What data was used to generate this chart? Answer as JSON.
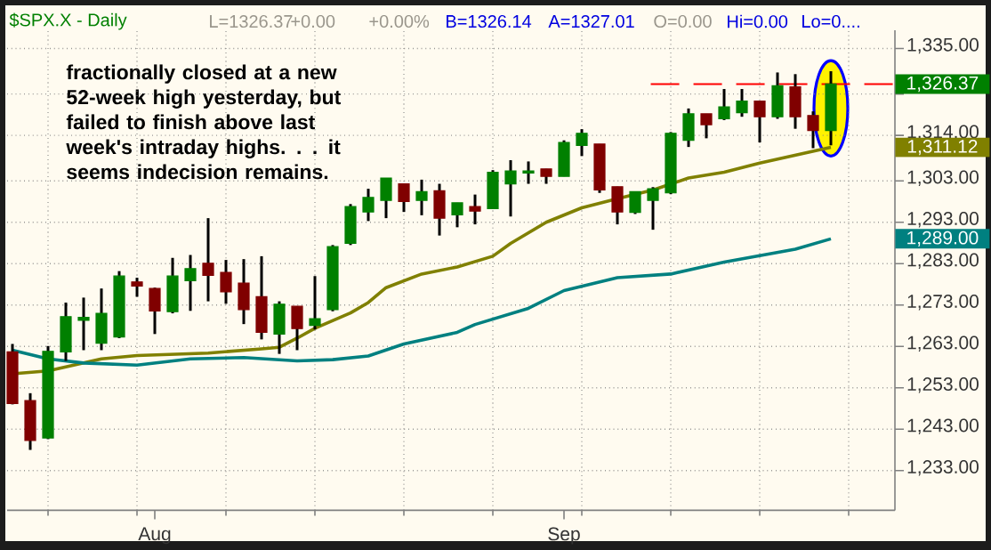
{
  "chart_data": {
    "type": "candlestick",
    "title": "$SPX.X - Daily",
    "categories": [
      null,
      null,
      null,
      null,
      null,
      null,
      null,
      null,
      "Aug",
      null,
      null,
      null,
      null,
      null,
      null,
      null,
      null,
      null,
      null,
      null,
      null,
      null,
      null,
      null,
      null,
      null,
      null,
      null,
      null,
      null,
      null,
      "Sep",
      null,
      null,
      null,
      null,
      null,
      null,
      null,
      null,
      null,
      null,
      null,
      null,
      null,
      null,
      null
    ],
    "ohlc": [
      [
        1261.7,
        1263.6,
        1249.0,
        1249.2
      ],
      [
        1249.9,
        1251.7,
        1238.0,
        1240.3
      ],
      [
        1240.9,
        1263.1,
        1240.6,
        1261.8
      ],
      [
        1261.7,
        1273.6,
        1259.5,
        1270.2
      ],
      [
        1269.3,
        1274.8,
        1262.1,
        1270.0
      ],
      [
        1263.8,
        1277.0,
        1262.1,
        1271.0
      ],
      [
        1265.3,
        1281.2,
        1265.0,
        1280.0
      ],
      [
        1278.6,
        1279.6,
        1275.0,
        1277.6
      ],
      [
        1277.0,
        1277.2,
        1266.0,
        1271.6
      ],
      [
        1271.4,
        1284.4,
        1271.0,
        1280.0
      ],
      [
        1278.9,
        1285.1,
        1271.6,
        1281.8
      ],
      [
        1283.1,
        1294.0,
        1273.9,
        1280.2
      ],
      [
        1280.9,
        1283.9,
        1273.3,
        1276.2
      ],
      [
        1278.3,
        1284.1,
        1268.4,
        1271.9
      ],
      [
        1275.0,
        1284.8,
        1264.7,
        1266.4
      ],
      [
        1266.0,
        1273.9,
        1261.2,
        1273.2
      ],
      [
        1272.7,
        1272.7,
        1262.1,
        1267.3
      ],
      [
        1268.1,
        1280.0,
        1267.1,
        1269.7
      ],
      [
        1271.9,
        1287.5,
        1271.5,
        1287.1
      ],
      [
        1287.9,
        1297.4,
        1287.5,
        1296.8
      ],
      [
        1295.5,
        1301.1,
        1293.3,
        1299.0
      ],
      [
        1298.3,
        1303.7,
        1294.0,
        1303.7
      ],
      [
        1302.3,
        1302.3,
        1295.5,
        1298.0
      ],
      [
        1298.3,
        1303.3,
        1294.7,
        1300.4
      ],
      [
        1300.6,
        1302.3,
        1289.8,
        1294.0
      ],
      [
        1294.8,
        1297.7,
        1291.8,
        1297.7
      ],
      [
        1296.8,
        1299.7,
        1292.5,
        1295.7
      ],
      [
        1296.3,
        1305.6,
        1296.3,
        1305.1
      ],
      [
        1302.3,
        1308.0,
        1294.4,
        1305.4
      ],
      [
        1304.9,
        1307.7,
        1302.3,
        1305.4
      ],
      [
        1305.9,
        1305.9,
        1302.3,
        1304.1
      ],
      [
        1304.1,
        1312.8,
        1304.1,
        1312.3
      ],
      [
        1311.6,
        1315.5,
        1309.0,
        1314.5
      ],
      [
        1311.9,
        1311.9,
        1300.1,
        1300.8
      ],
      [
        1301.6,
        1301.6,
        1292.5,
        1295.5
      ],
      [
        1295.4,
        1300.4,
        1295.0,
        1300.4
      ],
      [
        1298.3,
        1301.5,
        1291.2,
        1301.1
      ],
      [
        1300.1,
        1314.8,
        1299.8,
        1314.5
      ],
      [
        1312.8,
        1320.5,
        1311.2,
        1319.2
      ],
      [
        1319.2,
        1319.2,
        1313.3,
        1316.6
      ],
      [
        1318.0,
        1325.2,
        1317.7,
        1320.9
      ],
      [
        1319.5,
        1325.2,
        1318.5,
        1322.3
      ],
      [
        1322.3,
        1322.3,
        1312.3,
        1318.5
      ],
      [
        1318.5,
        1329.2,
        1318.0,
        1326.0
      ],
      [
        1325.7,
        1328.8,
        1315.6,
        1318.5
      ],
      [
        1318.8,
        1319.8,
        1310.9,
        1315.2
      ],
      [
        1315.2,
        1329.5,
        1311.6,
        1326.4
      ]
    ],
    "colors": [
      "#800000",
      "#800000",
      "#008000",
      "#008000",
      "#008000",
      "#008000",
      "#008000",
      "#800000",
      "#800000",
      "#008000",
      "#008000",
      "#800000",
      "#800000",
      "#800000",
      "#800000",
      "#008000",
      "#800000",
      "#008000",
      "#008000",
      "#008000",
      "#008000",
      "#008000",
      "#800000",
      "#008000",
      "#800000",
      "#008000",
      "#800000",
      "#008000",
      "#008000",
      "#008000",
      "#800000",
      "#008000",
      "#008000",
      "#800000",
      "#800000",
      "#008000",
      "#008000",
      "#008000",
      "#008000",
      "#800000",
      "#008000",
      "#008000",
      "#800000",
      "#008000",
      "#800000",
      "#800000",
      "#008000"
    ],
    "series": [
      {
        "type": "line",
        "color": "#808000",
        "values": [
          1256.4,
          null,
          1257.1,
          null,
          null,
          1260.0,
          null,
          1260.8,
          null,
          null,
          null,
          1261.4,
          null,
          null,
          1262.4,
          1262.8,
          1265.0,
          1267.4,
          null,
          1271.1,
          1273.6,
          1277.2,
          null,
          1280.5,
          null,
          1282.2,
          null,
          1284.8,
          1287.9,
          null,
          1293.0,
          null,
          1296.5,
          null,
          1298.7,
          null,
          1300.8,
          null,
          1303.7,
          null,
          1305.1,
          null,
          1307.3,
          null,
          1309.2,
          null,
          1311.1
        ]
      },
      {
        "type": "line",
        "color": "#008080",
        "values": [
          1262.1,
          null,
          1260.0,
          null,
          1259.0,
          null,
          null,
          1258.5,
          null,
          null,
          1260.0,
          null,
          null,
          1260.3,
          null,
          null,
          1259.5,
          null,
          1259.8,
          null,
          1260.7,
          null,
          1263.6,
          null,
          null,
          1266.4,
          1268.3,
          null,
          null,
          1272.2,
          null,
          1276.5,
          null,
          null,
          1279.6,
          null,
          null,
          1280.5,
          null,
          null,
          1283.4,
          null,
          null,
          null,
          1286.5,
          null,
          1289.0
        ]
      }
    ],
    "ylim": [
      1223.4,
      1339.4
    ],
    "yticks": [
      {
        "value": 1335,
        "label": "1,335.00"
      },
      {
        "value": 1324,
        "label": null
      },
      {
        "value": 1314,
        "label": "1,314.00"
      },
      {
        "value": 1303,
        "label": "1,303.00"
      },
      {
        "value": 1293,
        "label": "1,293.00"
      },
      {
        "value": 1283,
        "label": "1,283.00"
      },
      {
        "value": 1273,
        "label": "1,273.00"
      },
      {
        "value": 1263,
        "label": "1,263.00"
      },
      {
        "value": 1253,
        "label": "1,253.00"
      },
      {
        "value": 1243,
        "label": "1,243.00"
      },
      {
        "value": 1233,
        "label": "1,233.00"
      }
    ],
    "grid": true,
    "ref_lines": [
      {
        "axis": "y",
        "value": 1326.37,
        "color": "#ff0000",
        "line_style": "dashed"
      }
    ],
    "annotations": [
      "fractionally closed at a new 52-week high yesterday, but failed to finish above last week's intraday highs. . . it seems indecision remains.",
      "1,326.37",
      "1,311.12",
      "1,289.00",
      "L=1326.37",
      "+0.00",
      "+0.00%",
      "B=1326.14",
      "A=1327.01",
      "O=0.00",
      "Hi=0.00",
      "Lo=0...."
    ]
  }
}
